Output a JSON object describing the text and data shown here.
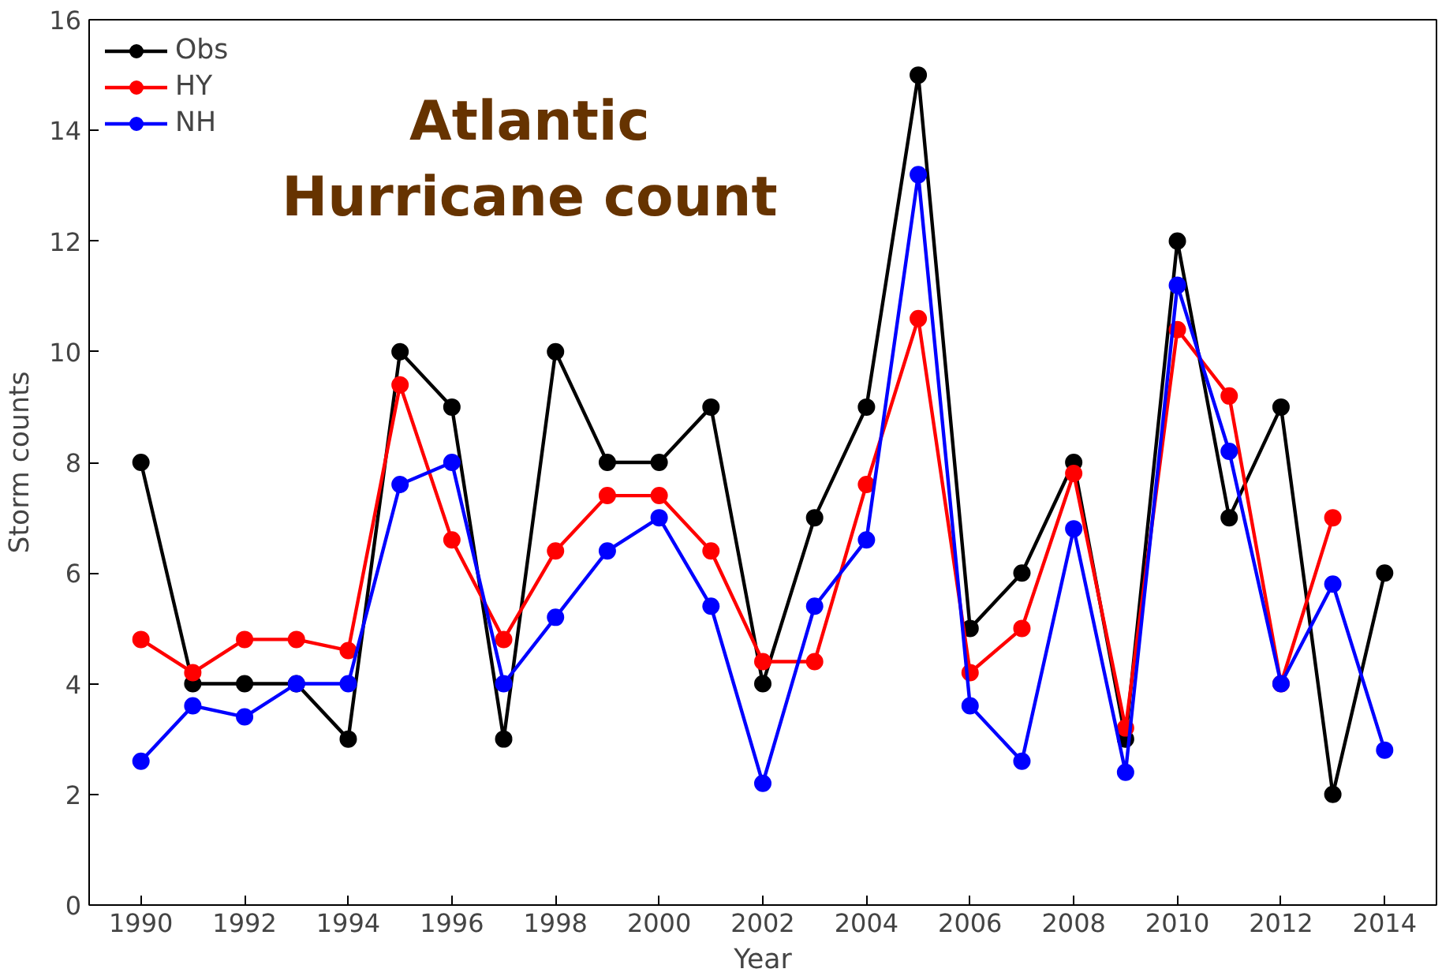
{
  "chart_data": {
    "type": "line",
    "title": "Atlantic\nHurricane count",
    "xlabel": "Year",
    "ylabel": "Storm counts",
    "x": [
      1990,
      1991,
      1992,
      1993,
      1994,
      1995,
      1996,
      1997,
      1998,
      1999,
      2000,
      2001,
      2002,
      2003,
      2004,
      2005,
      2006,
      2007,
      2008,
      2009,
      2010,
      2011,
      2012,
      2013,
      2014
    ],
    "series": [
      {
        "name": "Obs",
        "color": "#000000",
        "values": [
          8,
          4,
          4,
          4,
          3,
          10,
          9,
          3,
          10,
          8,
          8,
          9,
          4,
          7,
          9,
          15,
          5,
          6,
          8,
          3,
          12,
          7,
          9,
          2,
          6
        ]
      },
      {
        "name": "HY",
        "color": "#ff0000",
        "values": [
          4.8,
          4.2,
          4.8,
          4.8,
          4.6,
          9.4,
          6.6,
          4.8,
          6.4,
          7.4,
          7.4,
          6.4,
          4.4,
          4.4,
          7.6,
          10.6,
          4.2,
          5.0,
          7.8,
          3.2,
          10.4,
          9.2,
          4.0,
          7.0,
          null
        ]
      },
      {
        "name": "NH",
        "color": "#0000ff",
        "values": [
          2.6,
          3.6,
          3.4,
          4.0,
          4.0,
          7.6,
          8.0,
          4.0,
          5.2,
          6.4,
          7.0,
          5.4,
          2.2,
          5.4,
          6.6,
          13.2,
          3.6,
          2.6,
          6.8,
          2.4,
          11.2,
          8.2,
          4.0,
          5.8,
          2.8
        ]
      }
    ],
    "xlim": [
      1989,
      2015
    ],
    "ylim": [
      0,
      16
    ],
    "xticks": [
      1990,
      1992,
      1994,
      1996,
      1998,
      2000,
      2002,
      2004,
      2006,
      2008,
      2010,
      2012,
      2014
    ],
    "yticks": [
      0,
      2,
      4,
      6,
      8,
      10,
      12,
      14,
      16
    ],
    "grid": false,
    "legend": "top left",
    "marker": "circle",
    "line_style": "solid"
  }
}
